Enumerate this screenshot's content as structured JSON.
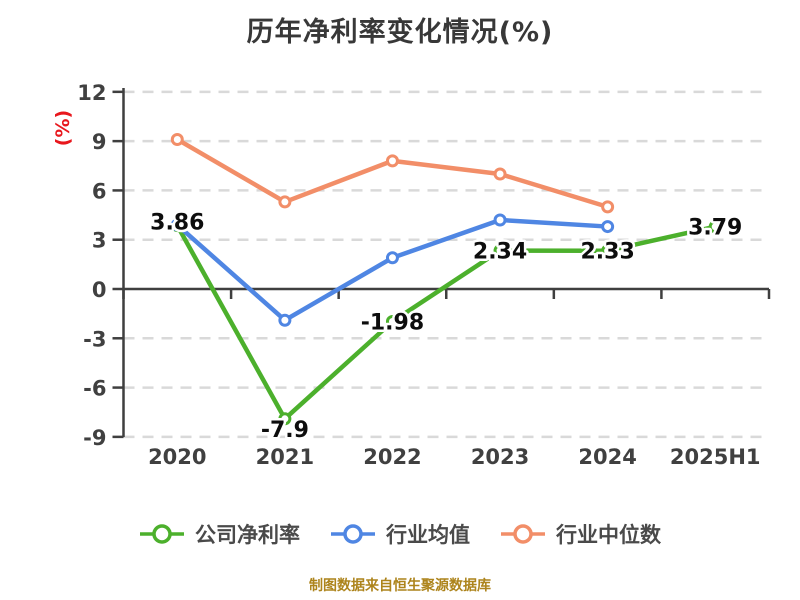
{
  "title": "历年净利率变化情况(%)",
  "colors": {
    "ylabel_red": "#e8171d",
    "footer_gold": "#ad841c",
    "axis_gray": "#3f3f3f",
    "gridline_gray": "#d9d9d9",
    "series_green": "#4cb02c",
    "series_blue": "#4f86e3",
    "series_orange": "#f28e68"
  },
  "footer": {
    "text": "制图数据来自恒生聚源数据库"
  },
  "chart_data": {
    "type": "line",
    "title": "历年净利率变化情况(%)",
    "ylabel": "(%)",
    "xlabel": "",
    "categories": [
      "2020",
      "2021",
      "2022",
      "2023",
      "2024",
      "2025H1"
    ],
    "y_ticks": [
      12,
      9,
      6,
      3,
      0,
      -3,
      -6,
      -9
    ],
    "ylim": [
      -9,
      12
    ],
    "grid": "horizontal-dashed",
    "legend_position": "bottom",
    "series": [
      {
        "name": "公司净利率",
        "color": "#4cb02c",
        "values": [
          3.86,
          -7.9,
          -1.98,
          2.34,
          2.33,
          3.79
        ],
        "labels": [
          "3.86",
          "-7.9",
          "-1.98",
          "2.34",
          "2.33",
          "3.79"
        ]
      },
      {
        "name": "行业均值",
        "color": "#4f86e3",
        "values": [
          3.9,
          -1.9,
          1.9,
          4.2,
          3.8,
          null
        ],
        "labels": null
      },
      {
        "name": "行业中位数",
        "color": "#f28e68",
        "values": [
          9.1,
          5.3,
          7.8,
          7.0,
          5.0,
          null
        ],
        "labels": null
      }
    ]
  }
}
